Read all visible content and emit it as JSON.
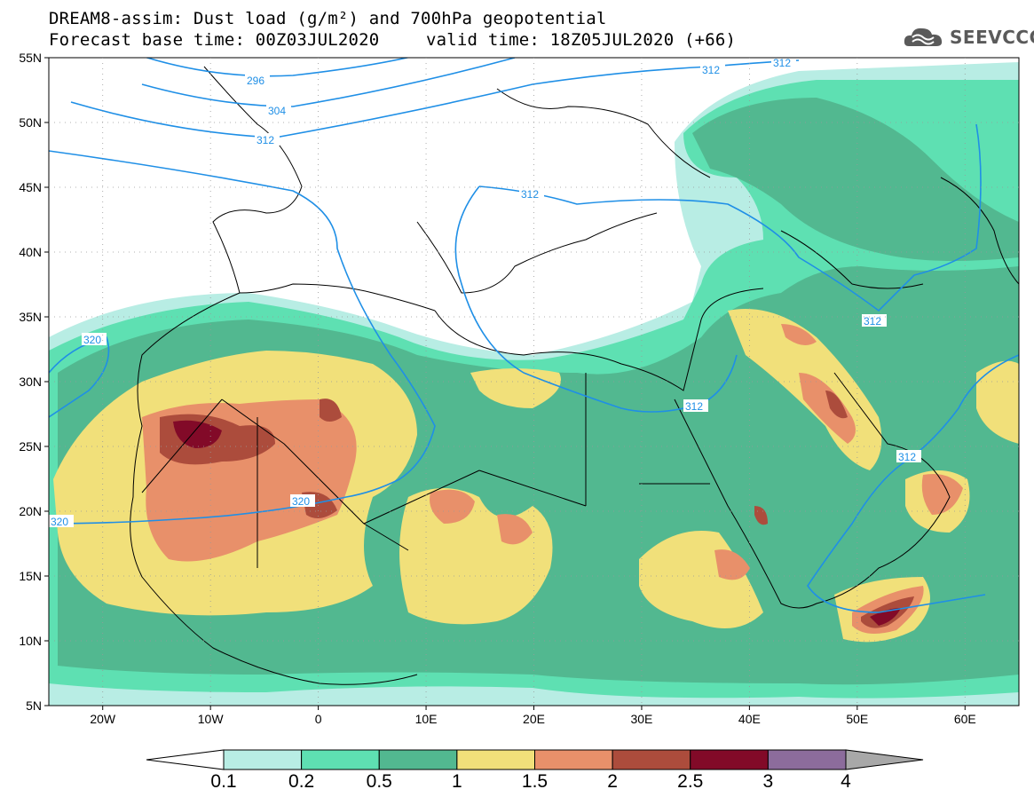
{
  "title_line1": "DREAM8-assim: Dust load (g/m²) and 700hPa geopotential",
  "title_line2": "Forecast base time: 00Z03JUL2020",
  "title_line2b": "valid time: 18Z05JUL2020 (+66)",
  "logo": {
    "text": "SEEVCCC",
    "icon": "cloud-icon"
  },
  "lat_labels": [
    "55N",
    "50N",
    "45N",
    "40N",
    "35N",
    "30N",
    "25N",
    "20N",
    "15N",
    "10N",
    "5N"
  ],
  "lat_values": [
    55,
    50,
    45,
    40,
    35,
    30,
    25,
    20,
    15,
    10,
    5
  ],
  "lon_labels": [
    "20W",
    "10W",
    "0",
    "10E",
    "20E",
    "30E",
    "40E",
    "50E",
    "60E"
  ],
  "lon_values": [
    -20,
    -10,
    0,
    10,
    20,
    30,
    40,
    50,
    60
  ],
  "contour_labels": [
    "296",
    "304",
    "312",
    "312",
    "312",
    "312",
    "312",
    "312",
    "312",
    "320",
    "320",
    "320"
  ],
  "colorbar": {
    "ticks": [
      "0.1",
      "0.2",
      "0.5",
      "1",
      "1.5",
      "2",
      "2.5",
      "3",
      "4"
    ],
    "colors": [
      "#ffffff",
      "#b8ede4",
      "#5ee0b2",
      "#52b890",
      "#f1e07a",
      "#e8906a",
      "#ac4c3c",
      "#820a28",
      "#8c6c9c",
      "#a8a8a8"
    ]
  }
}
